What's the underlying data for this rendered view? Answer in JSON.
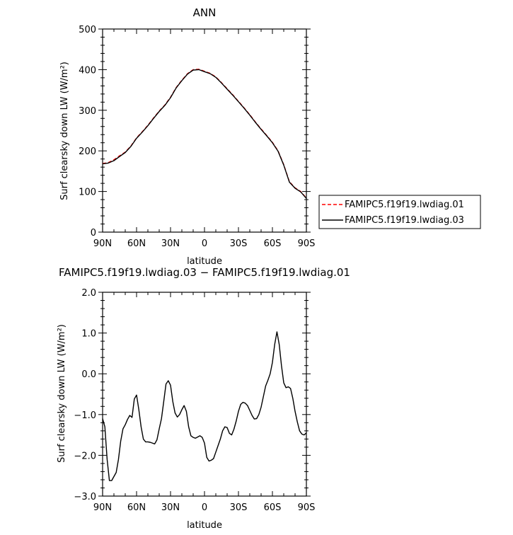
{
  "chart_data": [
    {
      "type": "line",
      "title": "ANN",
      "xlabel": "latitude",
      "ylabel": "Surf clearsky down LW (W/m²)",
      "xlim": [
        90,
        -90
      ],
      "ylim": [
        0,
        500
      ],
      "x_ticks": [
        {
          "value": 90,
          "label": "90N"
        },
        {
          "value": 60,
          "label": "60N"
        },
        {
          "value": 30,
          "label": "30N"
        },
        {
          "value": 0,
          "label": "0"
        },
        {
          "value": -30,
          "label": "30S"
        },
        {
          "value": -60,
          "label": "60S"
        },
        {
          "value": -90,
          "label": "90S"
        }
      ],
      "y_ticks": [
        {
          "value": 0,
          "label": "0"
        },
        {
          "value": 100,
          "label": "100"
        },
        {
          "value": 200,
          "label": "200"
        },
        {
          "value": 300,
          "label": "300"
        },
        {
          "value": 400,
          "label": "400"
        },
        {
          "value": 500,
          "label": "500"
        }
      ],
      "legend_position": "right",
      "series": [
        {
          "name": "FAMIPC5.f19f19.lwdiag.01",
          "color": "#ff0000",
          "dash": "dashed",
          "x": [
            90,
            85,
            80,
            75,
            70,
            65,
            60,
            55,
            50,
            45,
            40,
            35,
            30,
            25,
            20,
            15,
            10,
            5,
            0,
            -5,
            -10,
            -15,
            -20,
            -25,
            -30,
            -35,
            -40,
            -45,
            -50,
            -55,
            -60,
            -65,
            -70,
            -75,
            -80,
            -85,
            -90
          ],
          "y": [
            169,
            171,
            178,
            188,
            197,
            212,
            232,
            247,
            263,
            281,
            298,
            313,
            332,
            356,
            374,
            390,
            400,
            401,
            396,
            391,
            382,
            368,
            353,
            338,
            322,
            306,
            289,
            271,
            254,
            238,
            221,
            200,
            166,
            124,
            109,
            100,
            84
          ]
        },
        {
          "name": "FAMIPC5.f19f19.lwdiag.03",
          "color": "#000000",
          "dash": "solid",
          "x": [
            90,
            85,
            80,
            75,
            70,
            65,
            60,
            55,
            50,
            45,
            40,
            35,
            30,
            25,
            20,
            15,
            10,
            5,
            0,
            -5,
            -10,
            -15,
            -20,
            -25,
            -30,
            -35,
            -40,
            -45,
            -50,
            -55,
            -60,
            -65,
            -70,
            -75,
            -80,
            -85,
            -90
          ],
          "y": [
            168,
            170,
            176,
            186,
            196,
            211,
            231,
            246,
            262,
            280,
            297,
            312,
            331,
            355,
            373,
            389,
            399,
            400,
            395,
            390,
            381,
            367,
            352,
            337,
            321,
            305,
            288,
            270,
            253,
            237,
            220,
            199,
            165,
            123,
            108,
            99,
            83
          ]
        }
      ]
    },
    {
      "type": "line",
      "title": "FAMIPC5.f19f19.lwdiag.03 − FAMIPC5.f19f19.lwdiag.01",
      "xlabel": "latitude",
      "ylabel": "Surf clearsky down LW (W/m²)",
      "xlim": [
        90,
        -90
      ],
      "ylim": [
        -3.0,
        2.0
      ],
      "x_ticks": [
        {
          "value": 90,
          "label": "90N"
        },
        {
          "value": 60,
          "label": "60N"
        },
        {
          "value": 30,
          "label": "30N"
        },
        {
          "value": 0,
          "label": "0"
        },
        {
          "value": -30,
          "label": "30S"
        },
        {
          "value": -60,
          "label": "60S"
        },
        {
          "value": -90,
          "label": "90S"
        }
      ],
      "y_ticks": [
        {
          "value": -3.0,
          "label": "−3.0"
        },
        {
          "value": -2.0,
          "label": "−2.0"
        },
        {
          "value": -1.0,
          "label": "−1.0"
        },
        {
          "value": 0.0,
          "label": "0.0"
        },
        {
          "value": 1.0,
          "label": "1.0"
        },
        {
          "value": 2.0,
          "label": "2.0"
        }
      ],
      "series": [
        {
          "color": "#000000",
          "dash": "solid",
          "x": [
            90,
            88,
            86,
            84,
            82,
            80,
            78,
            76,
            74,
            72,
            70,
            68,
            66,
            64,
            62,
            60,
            58,
            56,
            54,
            52,
            50,
            48,
            46,
            44,
            42,
            40,
            38,
            36,
            34,
            32,
            30,
            28,
            26,
            24,
            22,
            20,
            18,
            16,
            14,
            12,
            10,
            8,
            6,
            4,
            2,
            0,
            -2,
            -4,
            -6,
            -8,
            -10,
            -12,
            -14,
            -16,
            -18,
            -20,
            -22,
            -24,
            -26,
            -28,
            -30,
            -32,
            -34,
            -36,
            -38,
            -40,
            -42,
            -44,
            -46,
            -48,
            -50,
            -52,
            -54,
            -56,
            -58,
            -60,
            -62,
            -64,
            -66,
            -68,
            -70,
            -72,
            -74,
            -76,
            -78,
            -80,
            -82,
            -84,
            -86,
            -88,
            -90
          ],
          "y": [
            -1.1,
            -1.3,
            -2.1,
            -2.62,
            -2.62,
            -2.52,
            -2.42,
            -2.1,
            -1.65,
            -1.35,
            -1.25,
            -1.12,
            -1.02,
            -1.07,
            -0.62,
            -0.52,
            -0.88,
            -1.3,
            -1.6,
            -1.67,
            -1.67,
            -1.68,
            -1.7,
            -1.72,
            -1.62,
            -1.35,
            -1.1,
            -0.68,
            -0.25,
            -0.17,
            -0.28,
            -0.68,
            -0.96,
            -1.06,
            -1.0,
            -0.88,
            -0.78,
            -0.92,
            -1.3,
            -1.52,
            -1.56,
            -1.58,
            -1.55,
            -1.52,
            -1.56,
            -1.7,
            -2.05,
            -2.14,
            -2.12,
            -2.08,
            -1.92,
            -1.76,
            -1.6,
            -1.4,
            -1.3,
            -1.32,
            -1.46,
            -1.5,
            -1.36,
            -1.16,
            -0.92,
            -0.75,
            -0.7,
            -0.72,
            -0.78,
            -0.9,
            -1.02,
            -1.11,
            -1.1,
            -1.0,
            -0.82,
            -0.56,
            -0.3,
            -0.16,
            0.0,
            0.28,
            0.72,
            1.03,
            0.72,
            0.2,
            -0.22,
            -0.34,
            -0.32,
            -0.36,
            -0.6,
            -0.92,
            -1.18,
            -1.4,
            -1.48,
            -1.5,
            -1.45
          ]
        }
      ]
    }
  ]
}
